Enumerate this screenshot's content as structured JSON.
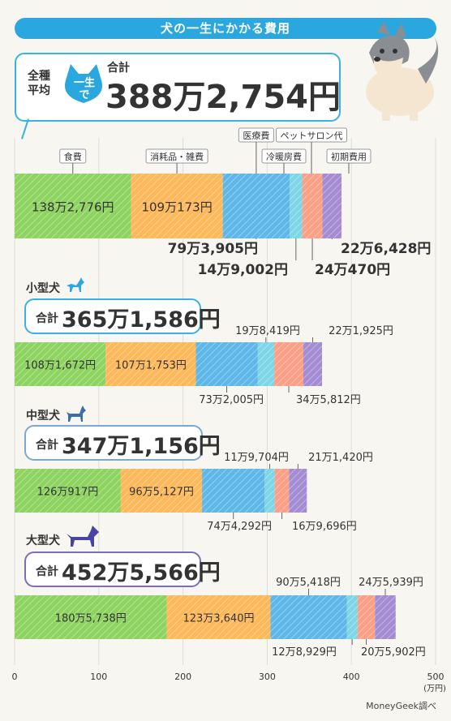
{
  "title": "犬の一生にかかる費用",
  "main": {
    "avg_label": "全種\n平均",
    "badge_text": "一生\nで",
    "total_prefix": "合計",
    "total_value": "388万2,754円",
    "category_labels": [
      "食費",
      "消耗品・雑費",
      "医療費",
      "冷暖房費",
      "ペットサロン代",
      "初期費用"
    ]
  },
  "sizes": [
    {
      "label": "小型犬",
      "total_prefix": "合計",
      "total_value": "365万1,586円"
    },
    {
      "label": "中型犬",
      "total_prefix": "合計",
      "total_value": "347万1,156円"
    },
    {
      "label": "大型犬",
      "total_prefix": "合計",
      "total_value": "452万5,566円"
    }
  ],
  "source": "MoneyGeek調べ",
  "colors": {
    "food": "#8dd35f",
    "supplies": "#fdb85a",
    "medical": "#5db7e8",
    "heating": "#7dd5e6",
    "salon": "#fc9f87",
    "initial": "#a48cd2",
    "accent": "#2aa7de"
  },
  "chart_data": {
    "type": "bar",
    "orientation": "horizontal",
    "stacked": true,
    "categories": [
      "全種平均",
      "小型犬",
      "中型犬",
      "大型犬"
    ],
    "series": [
      {
        "name": "食費",
        "values": [
          138.2776,
          108.1672,
          126.0917,
          180.5738
        ],
        "labels": [
          "138万2,776円",
          "108万1,672円",
          "126万917円",
          "180万5,738円"
        ]
      },
      {
        "name": "消耗品・雑費",
        "values": [
          109.0173,
          107.1753,
          96.5127,
          123.364
        ],
        "labels": [
          "109万173円",
          "107万1,753円",
          "96万5,127円",
          "123万3,640円"
        ]
      },
      {
        "name": "医療費",
        "values": [
          79.3905,
          73.2005,
          74.4292,
          90.5418
        ],
        "labels": [
          "79万3,905円",
          "73万2,005円",
          "74万4,292円",
          "90万5,418円"
        ]
      },
      {
        "name": "冷暖房費",
        "values": [
          14.9002,
          19.8419,
          11.9704,
          12.8929
        ],
        "labels": [
          "14万9,002円",
          "19万8,419円",
          "11万9,704円",
          "12万8,929円"
        ]
      },
      {
        "name": "ペットサロン代",
        "values": [
          24.047,
          34.5812,
          16.9696,
          20.5902
        ],
        "labels": [
          "24万470円",
          "34万5,812円",
          "16万9,696円",
          "20万5,902円"
        ]
      },
      {
        "name": "初期費用",
        "values": [
          22.6428,
          22.1925,
          21.142,
          24.5939
        ],
        "labels": [
          "22万6,428円",
          "22万1,925円",
          "21万1,420円",
          "24万5,939円"
        ]
      }
    ],
    "xlim": [
      0,
      500
    ],
    "xticks": [
      0,
      100,
      200,
      300,
      400,
      500
    ],
    "xunit": "(万円)",
    "grid": true
  }
}
